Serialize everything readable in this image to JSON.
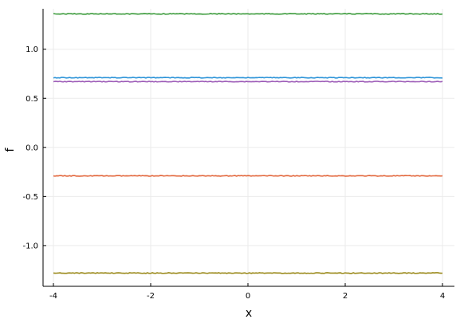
{
  "chart_data": {
    "type": "line",
    "xlabel": "x",
    "ylabel": "f",
    "xlim": [
      -4.0,
      4.0
    ],
    "ylim": [
      -1.35,
      1.42
    ],
    "x_ticks": [
      -4,
      -2,
      0,
      2,
      4
    ],
    "x_tick_labels": [
      "-4",
      "-2",
      "0",
      "2",
      "4"
    ],
    "y_ticks": [
      -1.0,
      -0.5,
      0.0,
      0.5,
      1.0
    ],
    "y_tick_labels": [
      "-1.0",
      "-0.5",
      "0.0",
      "0.5",
      "1.0"
    ],
    "grid": true,
    "legend": false,
    "series": [
      {
        "color": "#3a9a3a",
        "x": [
          -4,
          4
        ],
        "y": [
          1.36,
          1.36
        ]
      },
      {
        "color": "#2b93d8",
        "x": [
          -4,
          4
        ],
        "y": [
          0.71,
          0.71
        ]
      },
      {
        "color": "#9b59b6",
        "x": [
          -4,
          4
        ],
        "y": [
          0.67,
          0.67
        ]
      },
      {
        "color": "#e2653a",
        "x": [
          -4,
          4
        ],
        "y": [
          -0.29,
          -0.29
        ]
      },
      {
        "color": "#9b8a1c",
        "x": [
          -4,
          4
        ],
        "y": [
          -1.28,
          -1.28
        ]
      }
    ]
  }
}
